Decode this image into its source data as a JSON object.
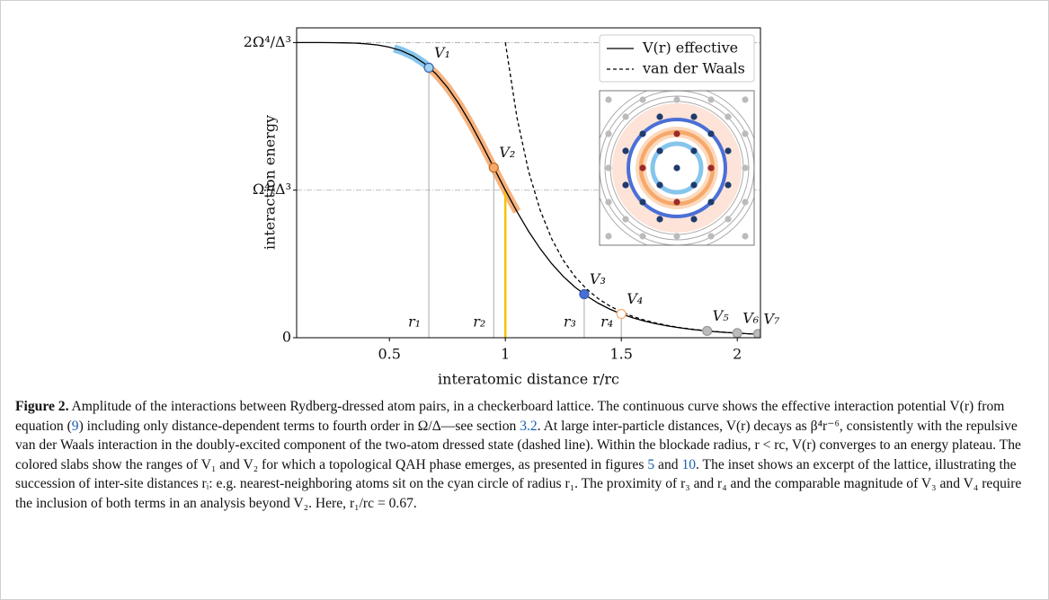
{
  "chart_data": {
    "type": "line",
    "xlabel": "interatomic distance r/rc",
    "ylabel": "interaction energy",
    "xlim": [
      0.1,
      2.1
    ],
    "ylim": [
      0,
      2.1
    ],
    "xticks": [
      0.5,
      1,
      1.5,
      2
    ],
    "yticks": [
      0,
      {
        "value": 1,
        "label": "Ω⁴/Δ³"
      },
      {
        "value": 2,
        "label": "2Ω⁴/Δ³"
      }
    ],
    "grid": true,
    "legend": "upper right",
    "x": [
      0.1,
      0.15,
      0.2,
      0.25,
      0.3,
      0.35,
      0.4,
      0.45,
      0.5,
      0.55,
      0.6,
      0.65,
      0.7,
      0.75,
      0.8,
      0.85,
      0.9,
      0.95,
      1.0,
      1.05,
      1.1,
      1.15,
      1.2,
      1.25,
      1.3,
      1.35,
      1.4,
      1.45,
      1.5,
      1.55,
      1.6,
      1.65,
      1.7,
      1.75,
      1.8,
      1.85,
      1.9,
      1.95,
      2.0,
      2.05,
      2.1
    ],
    "series": [
      {
        "name": "V(r) effective",
        "color": "#000000",
        "style": "solid",
        "values": [
          2.0,
          2.0,
          2.0,
          1.9995,
          1.9985,
          1.9963,
          1.9918,
          1.9835,
          1.9692,
          1.9461,
          1.9108,
          1.8597,
          1.7895,
          1.6978,
          1.5846,
          1.4523,
          1.306,
          1.1527,
          1.0,
          0.8547,
          0.7216,
          0.6037,
          0.5018,
          0.4154,
          0.3433,
          0.2835,
          0.2345,
          0.1944,
          0.1614,
          0.1345,
          0.1125,
          0.0944,
          0.0796,
          0.0673,
          0.0571,
          0.0487,
          0.0416,
          0.0357,
          0.0308,
          0.0266,
          0.0231
        ]
      },
      {
        "name": "van der Waals",
        "color": "#000000",
        "style": "dashed",
        "values": [
          null,
          null,
          null,
          null,
          null,
          null,
          null,
          null,
          null,
          null,
          null,
          null,
          null,
          null,
          null,
          null,
          null,
          null,
          2.0,
          1.4924,
          1.1289,
          0.8647,
          0.6698,
          0.5243,
          0.4143,
          0.3304,
          0.2656,
          0.2153,
          0.1756,
          0.1442,
          0.1192,
          0.0991,
          0.0829,
          0.0696,
          0.0588,
          0.0499,
          0.0425,
          0.0364,
          0.0313,
          0.027,
          0.0233
        ]
      }
    ],
    "slabs": [
      {
        "color": "#86c5ec",
        "xrange": [
          0.52,
          0.77
        ]
      },
      {
        "color": "#f7b27c",
        "xrange": [
          0.68,
          1.05
        ]
      }
    ],
    "highlight": {
      "x": 1,
      "value": 1,
      "color": "#f5c400"
    },
    "points": {
      "labels": [
        "V₁",
        "V₂",
        "V₃",
        "V₄",
        "V₅",
        "V₆",
        "V₇"
      ],
      "x": [
        0.67,
        0.95,
        1.34,
        1.5,
        1.87,
        2.0,
        2.09
      ],
      "values": [
        1.83,
        1.153,
        0.295,
        0.161,
        0.046,
        0.031,
        0.025
      ],
      "colors": [
        "#9fd3f0",
        "#f6a96a",
        "#4a6fd6",
        "#ffffff",
        "#bbbbbb",
        "#bbbbbb",
        "#bbbbbb"
      ]
    },
    "distance_labels": [
      "r₁",
      "r₂",
      "r₃",
      "r₄"
    ]
  },
  "caption": [
    {
      "text": "Figure 2.",
      "bold": true
    },
    {
      "text": " Amplitude of the interactions between Rydberg-dressed atom pairs, in a checkerboard lattice. The continuous curve shows the effective interaction potential V(r) from equation ("
    },
    {
      "text": "9",
      "link": true
    },
    {
      "text": ") including only distance-dependent terms to fourth order in Ω/Δ—see section "
    },
    {
      "text": "3.2",
      "link": true
    },
    {
      "text": ". At large inter-particle distances, V(r) decays as β⁴r⁻⁶, consistently with the repulsive van der Waals interaction in the doubly-excited component of the two-atom dressed state (dashed line). Within the blockade radius, r < rc, V(r) converges to an energy plateau. The colored slabs show the ranges of V₁ and V₂ for which a topological QAH phase emerges, as presented in figures "
    },
    {
      "text": "5",
      "link": true
    },
    {
      "text": " and "
    },
    {
      "text": "10",
      "link": true
    },
    {
      "text": ". The inset shows an excerpt of the lattice, illustrating the succession of inter-site distances rᵢ: e.g. nearest-neighboring atoms sit on the cyan circle of radius r₁. The proximity of r₃ and r₄ and the comparable magnitude of V₃ and V₄ require the inclusion of both terms in an analysis beyond V₂. Here, r₁/rc = 0.67."
    }
  ]
}
